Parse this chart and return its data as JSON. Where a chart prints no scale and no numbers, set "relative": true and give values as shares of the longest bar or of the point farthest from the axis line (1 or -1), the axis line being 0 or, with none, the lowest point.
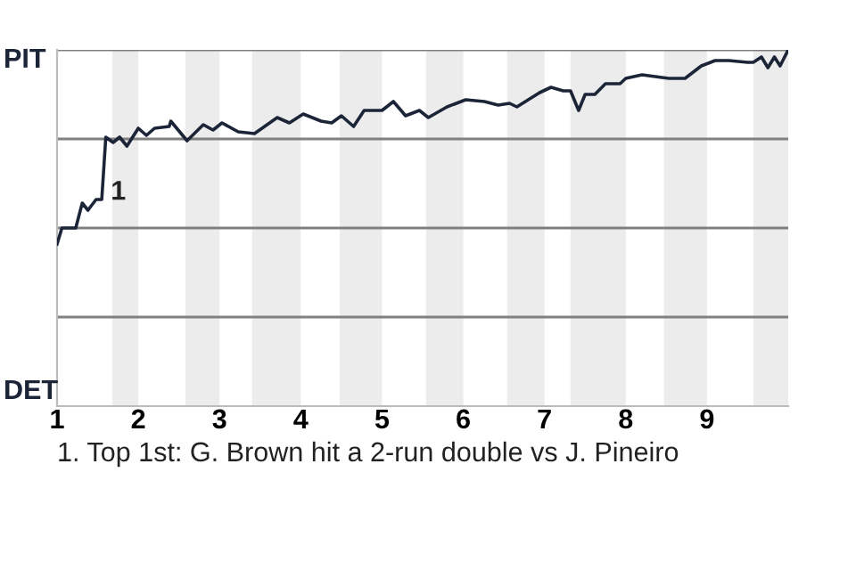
{
  "chart_data": {
    "type": "line",
    "relative": true,
    "color": "#1c2538",
    "x": [
      1.0,
      1.06,
      1.23,
      1.31,
      1.38,
      1.48,
      1.55,
      1.6,
      1.69,
      1.77,
      1.86,
      2.0,
      2.1,
      2.2,
      2.38,
      2.4,
      2.6,
      2.8,
      2.92,
      3.03,
      3.23,
      3.43,
      3.71,
      3.86,
      4.03,
      4.25,
      4.38,
      4.5,
      4.65,
      4.78,
      5.0,
      5.14,
      5.29,
      5.46,
      5.57,
      5.8,
      6.03,
      6.26,
      6.43,
      6.57,
      6.66,
      6.94,
      7.08,
      7.23,
      7.32,
      7.42,
      7.5,
      7.62,
      7.75,
      7.93,
      8.0,
      8.2,
      8.53,
      8.73,
      8.93,
      9.1,
      9.27,
      9.5,
      9.57,
      9.67,
      9.75,
      9.83,
      9.9,
      10.0
    ],
    "values": [
      0.455,
      0.5,
      0.5,
      0.57,
      0.55,
      0.58,
      0.58,
      0.755,
      0.74,
      0.755,
      0.73,
      0.78,
      0.76,
      0.78,
      0.785,
      0.8,
      0.745,
      0.79,
      0.775,
      0.795,
      0.77,
      0.765,
      0.81,
      0.795,
      0.82,
      0.8,
      0.795,
      0.815,
      0.785,
      0.83,
      0.83,
      0.855,
      0.815,
      0.83,
      0.81,
      0.84,
      0.86,
      0.855,
      0.845,
      0.85,
      0.84,
      0.88,
      0.895,
      0.885,
      0.885,
      0.83,
      0.875,
      0.875,
      0.905,
      0.905,
      0.92,
      0.93,
      0.92,
      0.92,
      0.955,
      0.97,
      0.97,
      0.965,
      0.965,
      0.98,
      0.95,
      0.98,
      0.955,
      1.0
    ],
    "xlim": [
      1,
      10
    ],
    "xticks": [
      1,
      2,
      3,
      4,
      5,
      6,
      7,
      8,
      9
    ],
    "tick_labels": "x",
    "bands": [
      {
        "axis": "x",
        "from": 1.68,
        "to": 2,
        "color": "#ececec"
      },
      {
        "axis": "x",
        "from": 2.58,
        "to": 3,
        "color": "#ececec"
      },
      {
        "axis": "x",
        "from": 3.4,
        "to": 4,
        "color": "#ececec"
      },
      {
        "axis": "x",
        "from": 4.48,
        "to": 5,
        "color": "#ececec"
      },
      {
        "axis": "x",
        "from": 5.54,
        "to": 6,
        "color": "#ececec"
      },
      {
        "axis": "x",
        "from": 6.54,
        "to": 7,
        "color": "#ececec"
      },
      {
        "axis": "x",
        "from": 7.32,
        "to": 8,
        "color": "#ececec"
      },
      {
        "axis": "x",
        "from": 8.47,
        "to": 9,
        "color": "#ececec"
      },
      {
        "axis": "x",
        "from": 9.57,
        "to": 10,
        "color": "#ececec"
      }
    ],
    "ref_lines": [
      {
        "axis": "y",
        "value": 0.25,
        "color": "#808080"
      },
      {
        "axis": "y",
        "value": 0.5,
        "color": "#808080"
      },
      {
        "axis": "y",
        "value": 0.75,
        "color": "#808080"
      },
      {
        "axis": "y",
        "value": 1,
        "color": "#808080"
      }
    ],
    "annotations": [
      "PIT",
      "DET",
      {
        "text": "1",
        "x": 1.6,
        "y": 0.62
      },
      "1. Top 1st: G. Brown hit a 2-run double vs J. Pineiro"
    ],
    "grid": false,
    "legend": false,
    "marker": "none",
    "line_style": "solid"
  }
}
